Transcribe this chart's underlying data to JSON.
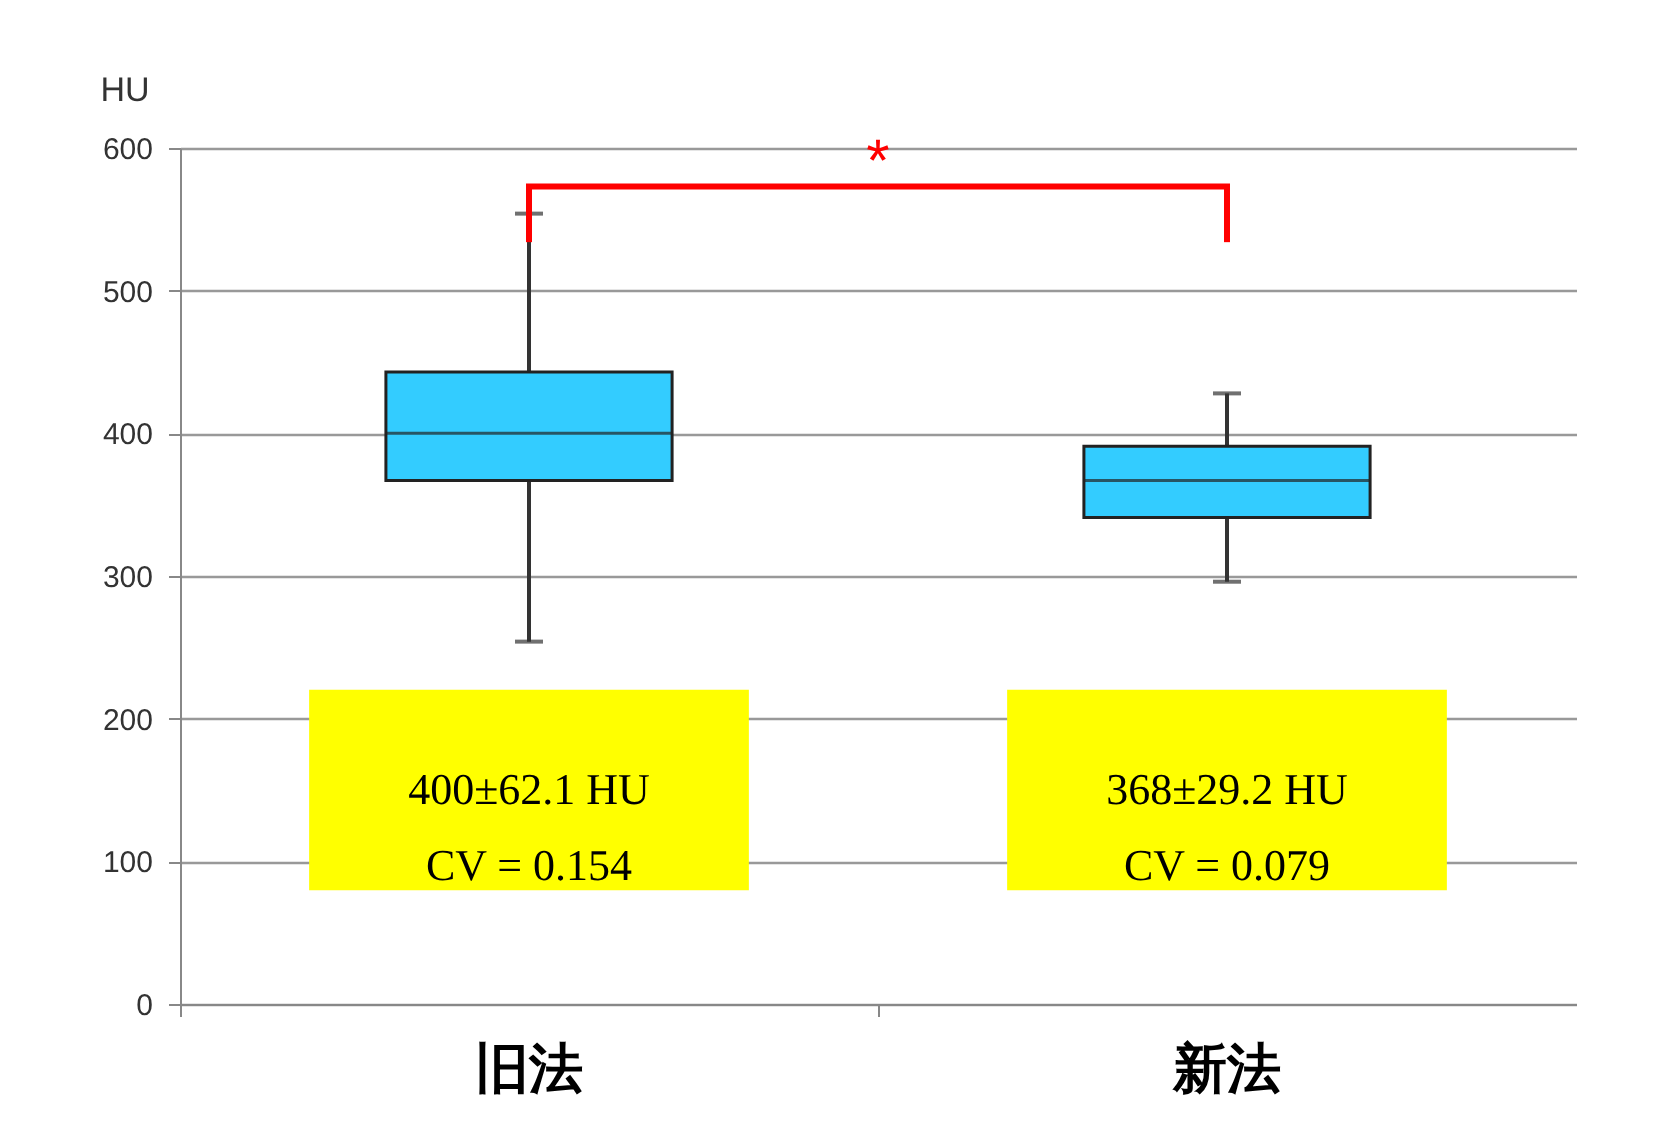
{
  "chart_data": {
    "type": "box",
    "ylabel": "HU",
    "categories": [
      "旧法",
      "新法"
    ],
    "boxes": [
      {
        "low": 254,
        "q1": 367,
        "median": 400,
        "q3": 443,
        "high": 554
      },
      {
        "low": 296,
        "q1": 341,
        "median": 367,
        "q3": 391,
        "high": 428
      }
    ],
    "color": "#33ccff",
    "ylim": [
      0,
      600
    ],
    "yticks": [
      0,
      100,
      200,
      300,
      400,
      500,
      600
    ],
    "grid": "y",
    "annotations": [
      "*",
      "400±62.1 HU\nCV = 0.154",
      "368±29.2 HU\nCV = 0.079"
    ]
  }
}
